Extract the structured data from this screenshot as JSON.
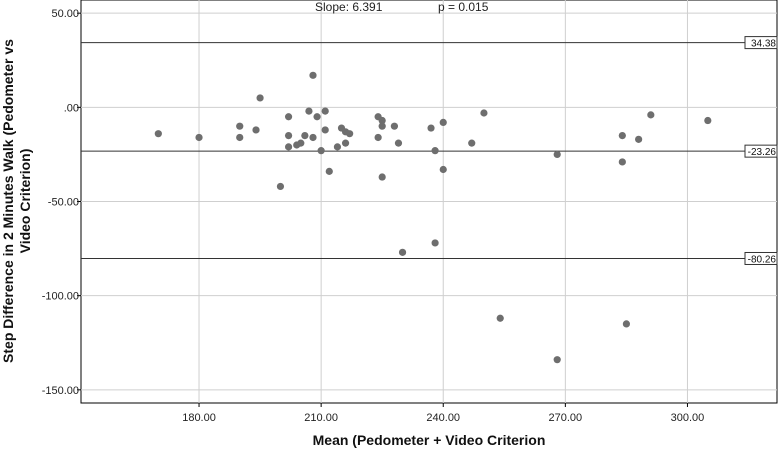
{
  "chart_data": {
    "type": "scatter",
    "xlabel": "Mean (Pedometer + Video Criterion",
    "ylabel_lines": [
      "Step Difference in 2 Minutes Walk (Pedometer vs",
      "Video Criterion)"
    ],
    "xlim": [
      151,
      322
    ],
    "ylim": [
      -157,
      57
    ],
    "x_ticks": [
      {
        "value": 180,
        "label": "180.00"
      },
      {
        "value": 210,
        "label": "210.00"
      },
      {
        "value": 240,
        "label": "240.00"
      },
      {
        "value": 270,
        "label": "270.00"
      },
      {
        "value": 300,
        "label": "300.00"
      }
    ],
    "y_ticks": [
      {
        "value": 50,
        "label": "50.00"
      },
      {
        "value": 0,
        "label": ".00"
      },
      {
        "value": -50,
        "label": "-50.00"
      },
      {
        "value": -100,
        "label": "-100.00"
      },
      {
        "value": -150,
        "label": "-150.00"
      }
    ],
    "grid": true,
    "reference_lines": [
      {
        "value": 34.38,
        "label": "34.38"
      },
      {
        "value": -23.26,
        "label": "-23.26"
      },
      {
        "value": -80.26,
        "label": "-80.26"
      }
    ],
    "annotations": {
      "slope": "Slope: 6.391",
      "p": "p = 0.015"
    },
    "marker_color": "#6e6e6e",
    "points": [
      {
        "x": 170,
        "y": -14
      },
      {
        "x": 180,
        "y": -16
      },
      {
        "x": 190,
        "y": -10
      },
      {
        "x": 190,
        "y": -16
      },
      {
        "x": 194,
        "y": -12
      },
      {
        "x": 195,
        "y": 5
      },
      {
        "x": 200,
        "y": -42
      },
      {
        "x": 202,
        "y": -5
      },
      {
        "x": 202,
        "y": -15
      },
      {
        "x": 202,
        "y": -21
      },
      {
        "x": 204,
        "y": -20
      },
      {
        "x": 205,
        "y": -19
      },
      {
        "x": 206,
        "y": -15
      },
      {
        "x": 207,
        "y": -2
      },
      {
        "x": 208,
        "y": -16
      },
      {
        "x": 208,
        "y": 17
      },
      {
        "x": 209,
        "y": -5
      },
      {
        "x": 210,
        "y": -23
      },
      {
        "x": 211,
        "y": -12
      },
      {
        "x": 211,
        "y": -2
      },
      {
        "x": 212,
        "y": -34
      },
      {
        "x": 214,
        "y": -21
      },
      {
        "x": 215,
        "y": -11
      },
      {
        "x": 216,
        "y": -13
      },
      {
        "x": 216,
        "y": -19
      },
      {
        "x": 217,
        "y": -14
      },
      {
        "x": 224,
        "y": -5
      },
      {
        "x": 224,
        "y": -16
      },
      {
        "x": 225,
        "y": -10
      },
      {
        "x": 225,
        "y": -7
      },
      {
        "x": 225,
        "y": -37
      },
      {
        "x": 228,
        "y": -10
      },
      {
        "x": 229,
        "y": -19
      },
      {
        "x": 230,
        "y": -77
      },
      {
        "x": 237,
        "y": -11
      },
      {
        "x": 238,
        "y": -23
      },
      {
        "x": 238,
        "y": -72
      },
      {
        "x": 240,
        "y": -8
      },
      {
        "x": 240,
        "y": -33
      },
      {
        "x": 247,
        "y": -19
      },
      {
        "x": 250,
        "y": -3
      },
      {
        "x": 254,
        "y": -112
      },
      {
        "x": 268,
        "y": -25
      },
      {
        "x": 268,
        "y": -134
      },
      {
        "x": 284,
        "y": -15
      },
      {
        "x": 284,
        "y": -29
      },
      {
        "x": 285,
        "y": -115
      },
      {
        "x": 288,
        "y": -17
      },
      {
        "x": 291,
        "y": -4
      },
      {
        "x": 305,
        "y": -7
      }
    ]
  }
}
